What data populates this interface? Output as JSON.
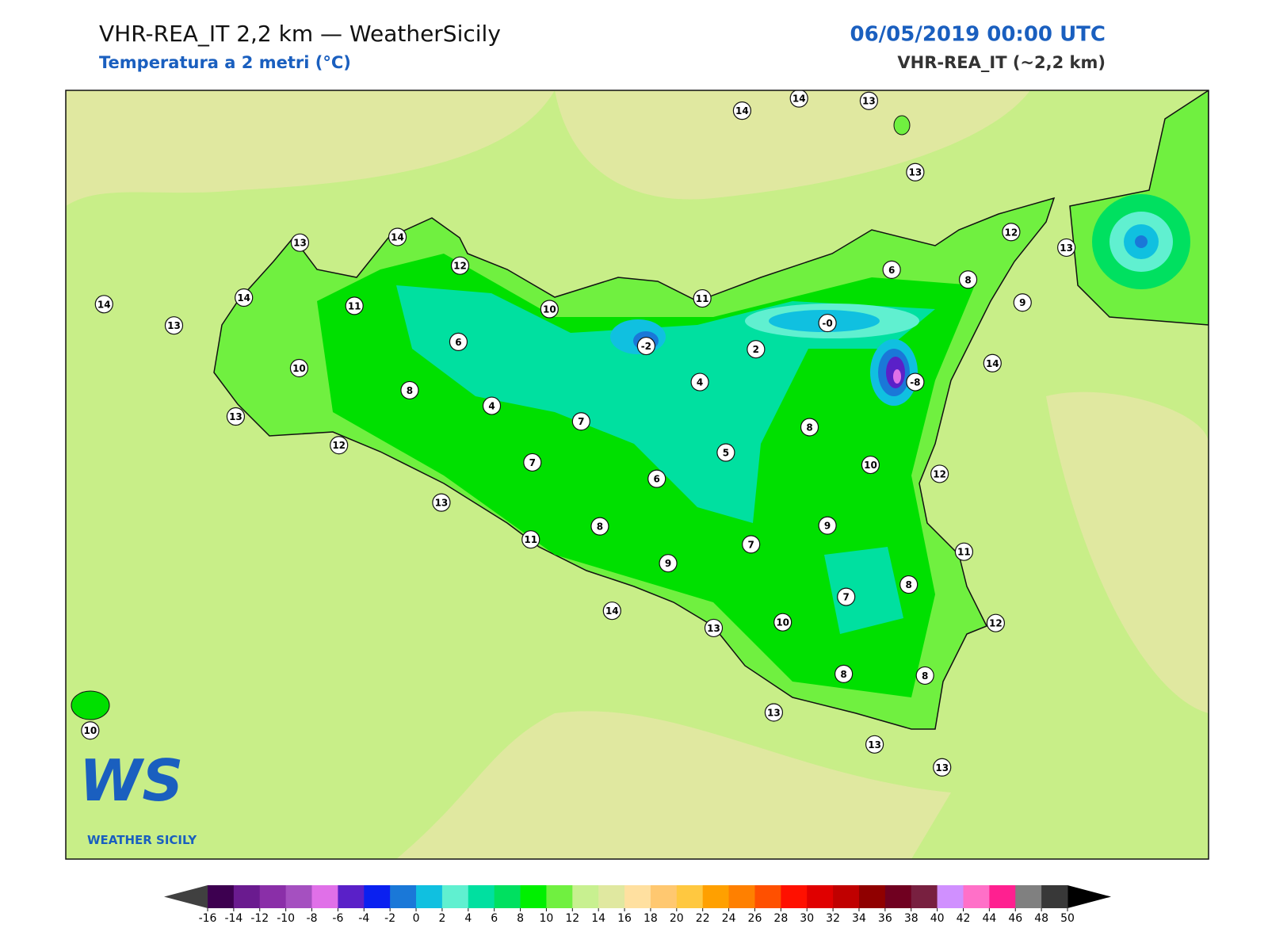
{
  "header": {
    "title": "VHR-REA_IT 2,2 km — WeatherSicily",
    "subtitle": "Temperatura a 2 metri (°C)",
    "datetime": "06/05/2019 00:00 UTC",
    "model": "VHR-REA_IT (~2,2 km)"
  },
  "map": {
    "station_values": [
      14,
      14,
      13,
      13,
      12,
      13,
      13,
      14,
      12,
      14,
      13,
      14,
      11,
      10,
      11,
      6,
      8,
      9,
      {
        "value": 0,
        "label": "-0"
      },
      6,
      -2,
      2,
      14,
      -8,
      10,
      8,
      4,
      4,
      13,
      7,
      8,
      12,
      7,
      5,
      10,
      12,
      6,
      13,
      9,
      8,
      11,
      7,
      11,
      9,
      8,
      7,
      14,
      13,
      10,
      12,
      8,
      8,
      13,
      13,
      13,
      10
    ]
  },
  "colorbar": {
    "ticks": [
      -16,
      -14,
      -12,
      -10,
      -8,
      -6,
      -4,
      -2,
      0,
      2,
      4,
      6,
      8,
      10,
      12,
      14,
      16,
      18,
      20,
      22,
      24,
      26,
      28,
      30,
      32,
      34,
      36,
      38,
      40,
      42,
      44,
      46,
      48,
      50
    ],
    "colors": [
      "#3d0050",
      "#6a1b8f",
      "#8a2fa8",
      "#a550c0",
      "#e070e8",
      "#5a20c8",
      "#0a20f0",
      "#1a78d8",
      "#10c0e0",
      "#60f0d0",
      "#00e0a0",
      "#00e060",
      "#00f000",
      "#70f040",
      "#c8f090",
      "#e0e8a0",
      "#ffe0a0",
      "#ffc870",
      "#ffc840",
      "#ffa000",
      "#ff8000",
      "#ff5000",
      "#ff1000",
      "#e00000",
      "#c00000",
      "#900000",
      "#700020",
      "#782040",
      "#d090ff",
      "#ff70c8",
      "#ff2090",
      "#808080",
      "#383838"
    ],
    "under_color": "#404040",
    "over_color": "#000000"
  },
  "logo": {
    "text": "WS",
    "caption": "WEATHER SICILY"
  }
}
